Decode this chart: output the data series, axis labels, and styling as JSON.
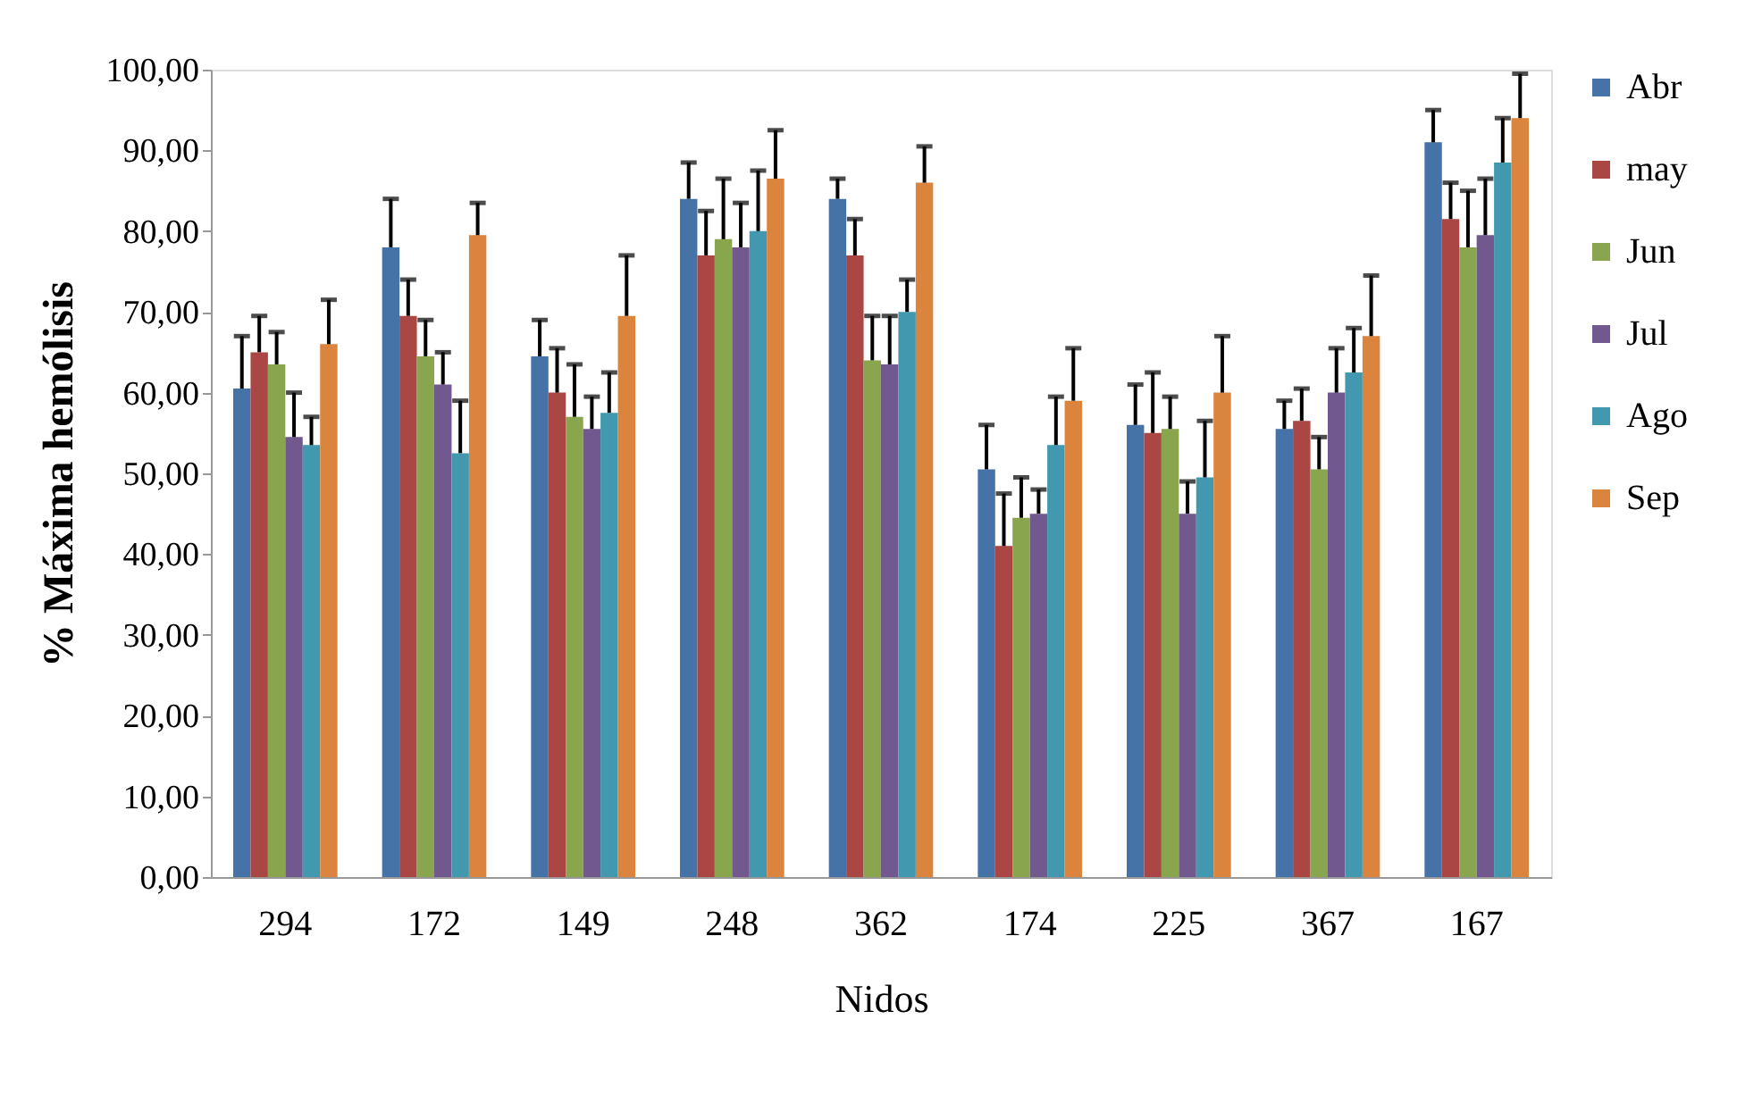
{
  "chart_data": {
    "type": "bar",
    "xlabel": "Nidos",
    "ylabel": "% Máxima hemólisis",
    "categories": [
      "294",
      "172",
      "149",
      "248",
      "362",
      "174",
      "225",
      "367",
      "167"
    ],
    "ylim": [
      0,
      100
    ],
    "yticks": [
      {
        "value": 0,
        "label": "0,00"
      },
      {
        "value": 10,
        "label": "10,00"
      },
      {
        "value": 20,
        "label": "20,00"
      },
      {
        "value": 30,
        "label": "30,00"
      },
      {
        "value": 40,
        "label": "40,00"
      },
      {
        "value": 50,
        "label": "50,00"
      },
      {
        "value": 60,
        "label": "60,00"
      },
      {
        "value": 70,
        "label": "70,00"
      },
      {
        "value": 80,
        "label": "80,00"
      },
      {
        "value": 90,
        "label": "90,00"
      },
      {
        "value": 100,
        "label": "100,00"
      }
    ],
    "grid": false,
    "legend": "right",
    "series": [
      {
        "name": "Abr",
        "color": "#4572a7",
        "values": [
          60.5,
          78,
          64.5,
          84,
          84,
          50.5,
          56,
          55.5,
          91
        ],
        "errors": [
          [
            60.5,
            67
          ],
          [
            78,
            84
          ],
          [
            64.5,
            69
          ],
          [
            84,
            88.5
          ],
          [
            84,
            86.5
          ],
          [
            50.5,
            56
          ],
          [
            56,
            61
          ],
          [
            55.5,
            59
          ],
          [
            91,
            95
          ]
        ]
      },
      {
        "name": "may",
        "color": "#aa4643",
        "values": [
          65,
          69.5,
          60,
          77,
          77,
          41,
          55,
          56.5,
          81.5
        ],
        "errors": [
          [
            65,
            69.5
          ],
          [
            69.5,
            74
          ],
          [
            60,
            65.5
          ],
          [
            77,
            82.5
          ],
          [
            77,
            81.5
          ],
          [
            41,
            47.5
          ],
          [
            55,
            62.5
          ],
          [
            56.5,
            60.5
          ],
          [
            81.5,
            86
          ]
        ]
      },
      {
        "name": "Jun",
        "color": "#89a54e",
        "values": [
          63.5,
          64.5,
          57,
          79,
          64,
          44.5,
          55.5,
          50.5,
          78
        ],
        "errors": [
          [
            63.5,
            67.5
          ],
          [
            64.5,
            69
          ],
          [
            57,
            63.5
          ],
          [
            79,
            86.5
          ],
          [
            64,
            69.5
          ],
          [
            44.5,
            49.5
          ],
          [
            55.5,
            59.5
          ],
          [
            50.5,
            54.5
          ],
          [
            78,
            85
          ]
        ]
      },
      {
        "name": "Jul",
        "color": "#71588f",
        "values": [
          54.5,
          61,
          55.5,
          78,
          63.5,
          45,
          45,
          60,
          79.5
        ],
        "errors": [
          [
            54.5,
            60
          ],
          [
            61,
            65
          ],
          [
            55.5,
            59.5
          ],
          [
            78,
            83.5
          ],
          [
            63.5,
            69.5
          ],
          [
            45,
            48
          ],
          [
            45,
            49
          ],
          [
            60,
            65.5
          ],
          [
            79.5,
            86.5
          ]
        ]
      },
      {
        "name": "Ago",
        "color": "#4198af",
        "values": [
          53.5,
          52.5,
          57.5,
          80,
          70,
          53.5,
          49.5,
          62.5,
          88.5
        ],
        "errors": [
          [
            53.5,
            57
          ],
          [
            52.5,
            59
          ],
          [
            57.5,
            62.5
          ],
          [
            80,
            87.5
          ],
          [
            70,
            74
          ],
          [
            53.5,
            59.5
          ],
          [
            49.5,
            56.5
          ],
          [
            62.5,
            68
          ],
          [
            88.5,
            94
          ]
        ]
      },
      {
        "name": "Sep",
        "color": "#db843d",
        "values": [
          66,
          79.5,
          69.5,
          86.5,
          86,
          59,
          60,
          67,
          94
        ],
        "errors": [
          [
            66,
            71.5
          ],
          [
            79.5,
            83.5
          ],
          [
            69.5,
            77
          ],
          [
            86.5,
            92.5
          ],
          [
            86,
            90.5
          ],
          [
            59,
            65.5
          ],
          [
            60,
            67
          ],
          [
            67,
            74.5
          ],
          [
            94,
            99.5
          ]
        ]
      }
    ]
  }
}
